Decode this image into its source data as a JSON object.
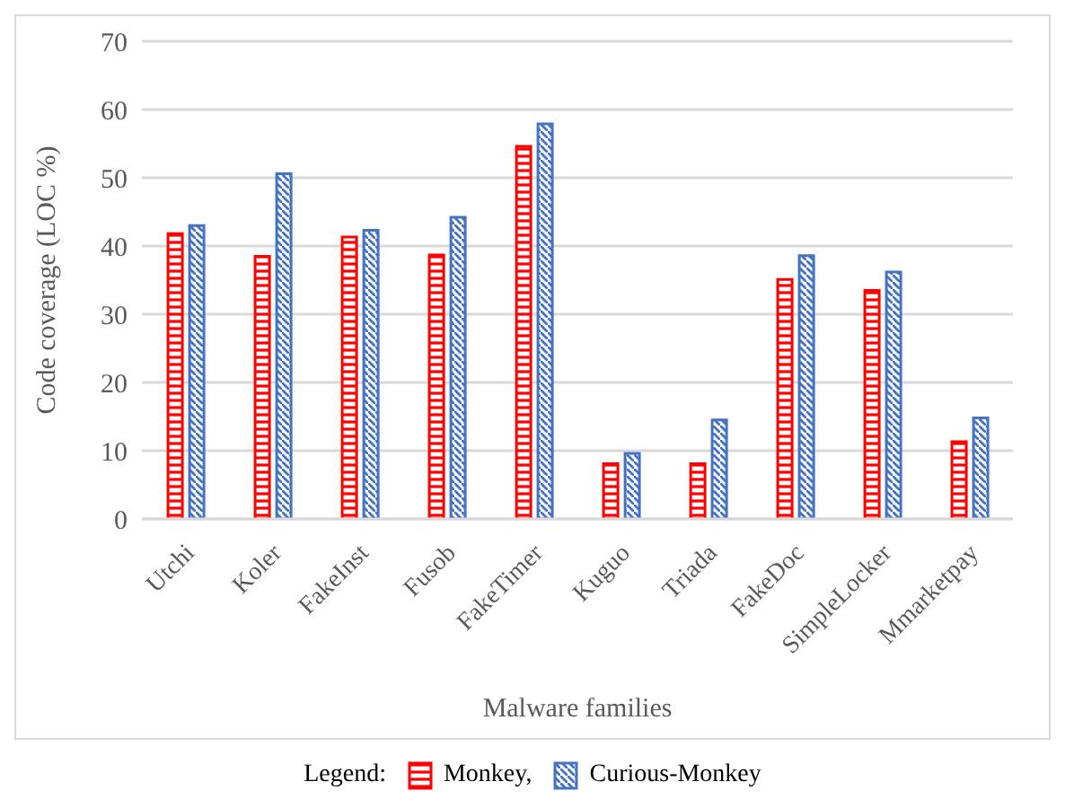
{
  "chart_data": {
    "type": "bar",
    "xlabel": "Malware families",
    "ylabel": "Code coverage (LOC %)",
    "legend_title": "Legend:",
    "categories": [
      "Utchi",
      "Koler",
      "FakeInst",
      "Fusob",
      "FakeTimer",
      "Kuguo",
      "Triada",
      "FakeDoc",
      "SimpleLocker",
      "Mmarketpay"
    ],
    "series": [
      {
        "name": "Monkey,",
        "color": "#ff0000",
        "values": [
          41.8,
          38.5,
          41.3,
          38.7,
          54.6,
          8.1,
          8.1,
          35.1,
          33.5,
          11.3
        ]
      },
      {
        "name": "Curious-Monkey",
        "color": "#4472c4",
        "values": [
          43.0,
          50.6,
          42.3,
          44.2,
          57.9,
          9.6,
          14.5,
          38.6,
          36.2,
          14.8
        ]
      }
    ],
    "ylim": [
      0,
      70
    ],
    "yticks": [
      0,
      10,
      20,
      30,
      40,
      50,
      60,
      70
    ],
    "grid": "y",
    "legend": "bottom"
  }
}
